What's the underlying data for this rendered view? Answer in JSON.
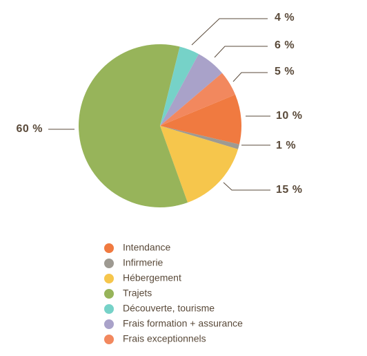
{
  "chart_data": {
    "type": "pie",
    "categories": [
      "Intendance",
      "Infirmerie",
      "Hébergement",
      "Trajets",
      "Découverte, tourisme",
      "Frais formation + assurance",
      "Frais exceptionnels"
    ],
    "values": [
      10,
      1,
      15,
      60,
      4,
      6,
      5
    ],
    "value_labels": [
      "10 %",
      "1 %",
      "15 %",
      "60 %",
      "4 %",
      "6 %",
      "5 %"
    ],
    "colors": [
      "#f07a40",
      "#9e9a92",
      "#f6c64c",
      "#97b45a",
      "#76d2c8",
      "#a9a2c9",
      "#f2885e"
    ]
  }
}
